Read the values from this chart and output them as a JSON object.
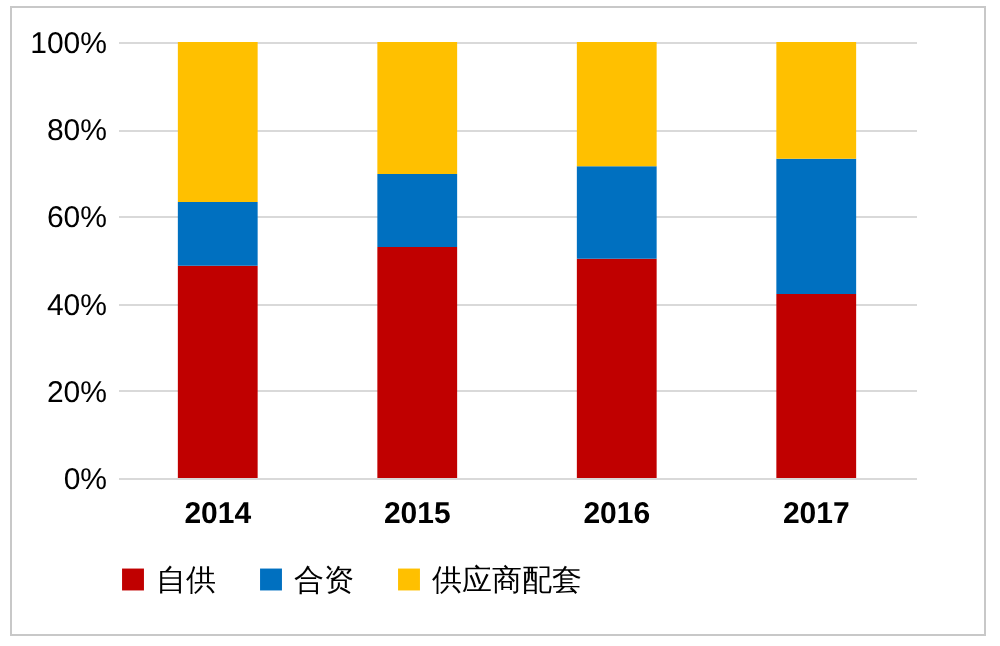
{
  "chart_data": {
    "type": "bar",
    "stacked": true,
    "categories": [
      "2014",
      "2015",
      "2016",
      "2017"
    ],
    "series": [
      {
        "name": "自供",
        "color": "#c00000",
        "values": [
          48.7,
          53.0,
          50.3,
          42.2
        ]
      },
      {
        "name": "合资",
        "color": "#0070c0",
        "values": [
          14.6,
          16.7,
          21.2,
          31.0
        ]
      },
      {
        "name": "供应商配套",
        "color": "#ffc000",
        "values": [
          36.7,
          30.3,
          28.5,
          26.8
        ]
      }
    ],
    "ylim": [
      0,
      100
    ],
    "yticks": [
      {
        "value": 0,
        "label": "0%"
      },
      {
        "value": 20,
        "label": "20%"
      },
      {
        "value": 40,
        "label": "40%"
      },
      {
        "value": 60,
        "label": "60%"
      },
      {
        "value": 80,
        "label": "80%"
      },
      {
        "value": 100,
        "label": "100%"
      }
    ],
    "grid": "y",
    "legend": "bottom"
  }
}
